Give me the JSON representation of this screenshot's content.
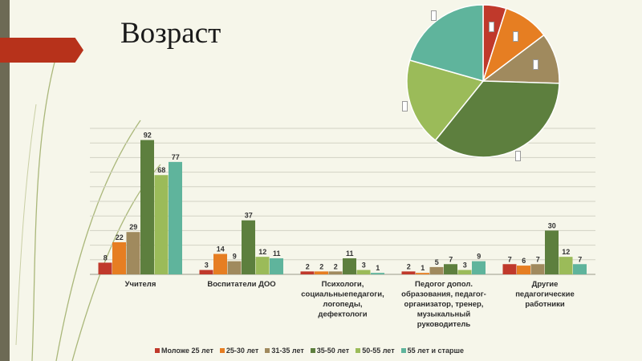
{
  "slide": {
    "title": "Возраст"
  },
  "chart_data": [
    {
      "type": "bar",
      "title": "",
      "xlabel": "",
      "ylabel": "",
      "ylim": [
        0,
        100
      ],
      "grid": true,
      "legend_position": "bottom",
      "categories": [
        "Учителя",
        "Воспитатели ДОО",
        "Психологи, социальныепедагоги, логопеды, дефектологи",
        "Педогог допол. образования, педагог-организатор, тренер, музыкальный руководитель",
        "Другие педагогические работники"
      ],
      "category_lines": [
        [
          "Учителя"
        ],
        [
          "Воспитатели ДОО"
        ],
        [
          "Психологи,",
          "социальныепедагоги,",
          "логопеды,",
          "дефектологи"
        ],
        [
          "Педогог допол.",
          "образования, педагог-",
          "организатор, тренер,",
          "музыкальный",
          "руководитель"
        ],
        [
          "Другие",
          "педагогические",
          "работники"
        ]
      ],
      "series": [
        {
          "name": "Моложе 25 лет",
          "color": "#c0392b",
          "values": [
            8,
            3,
            2,
            2,
            7
          ]
        },
        {
          "name": "25-30 лет",
          "color": "#e67e22",
          "values": [
            22,
            14,
            2,
            1,
            6
          ]
        },
        {
          "name": "31-35 лет",
          "color": "#a08a5e",
          "values": [
            29,
            9,
            2,
            5,
            7
          ]
        },
        {
          "name": "35-50 лет",
          "color": "#5d7f3e",
          "values": [
            92,
            37,
            11,
            7,
            30
          ]
        },
        {
          "name": "50-55 лет",
          "color": "#9bbb59",
          "values": [
            68,
            12,
            3,
            3,
            12
          ]
        },
        {
          "name": "55 лет и старше",
          "color": "#5fb49c",
          "values": [
            77,
            11,
            1,
            9,
            7
          ]
        }
      ]
    },
    {
      "type": "pie",
      "title": "",
      "slices": [
        {
          "name": "Моложе 25 лет",
          "value": 5,
          "color": "#c0392b"
        },
        {
          "name": "25-30 лет",
          "value": 10,
          "color": "#e67e22"
        },
        {
          "name": "31-35 лет",
          "value": 11,
          "color": "#a08a5e"
        },
        {
          "name": "35-50 лет",
          "value": 36,
          "color": "#5d7f3e"
        },
        {
          "name": "50-55 лет",
          "value": 19,
          "color": "#9bbb59"
        },
        {
          "name": "55 лет и старше",
          "value": 21,
          "color": "#5fb49c"
        }
      ]
    }
  ]
}
